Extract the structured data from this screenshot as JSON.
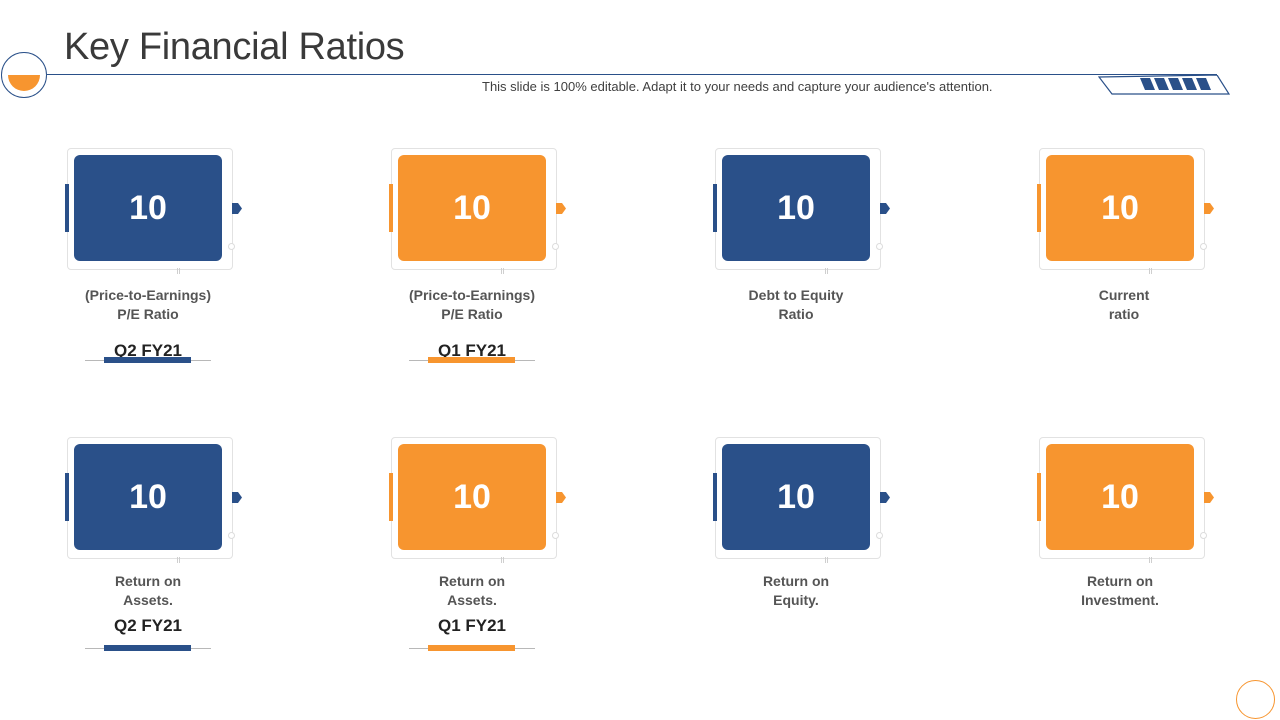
{
  "title": "Key Financial Ratios",
  "subtitle": "This slide is 100% editable. Adapt it to your needs and capture your audience's attention.",
  "colors": {
    "blue": "#2a5089",
    "orange": "#f7952f",
    "frame": "#e2e2e2",
    "text": "#555555"
  },
  "cards": [
    {
      "value": "10",
      "label": "(Price-to-Earnings)\nP/E Ratio",
      "period": "Q2 FY21",
      "color": "blue"
    },
    {
      "value": "10",
      "label": "(Price-to-Earnings)\nP/E Ratio",
      "period": "Q1 FY21",
      "color": "orange"
    },
    {
      "value": "10",
      "label": "Debt to Equity\nRatio",
      "period": "",
      "color": "blue"
    },
    {
      "value": "10",
      "label": "Current\nratio",
      "period": "",
      "color": "orange"
    },
    {
      "value": "10",
      "label": "Return on\nAssets.",
      "period": "Q2 FY21",
      "color": "blue"
    },
    {
      "value": "10",
      "label": "Return on\nAssets.",
      "period": "Q1 FY21",
      "color": "orange"
    },
    {
      "value": "10",
      "label": "Return on\nEquity.",
      "period": "",
      "color": "blue"
    },
    {
      "value": "10",
      "label": "Return on\nInvestment.",
      "period": "",
      "color": "orange"
    }
  ]
}
